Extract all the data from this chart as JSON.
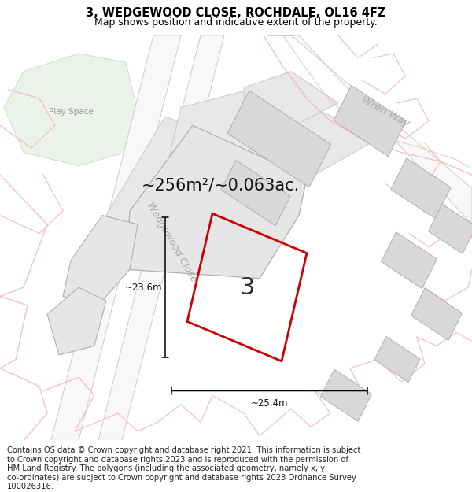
{
  "title_line1": "3, WEDGEWOOD CLOSE, ROCHDALE, OL16 4FZ",
  "title_line2": "Map shows position and indicative extent of the property.",
  "area_label": "~256m²/~0.063ac.",
  "plot_number": "3",
  "dim_width": "~25.4m",
  "dim_height": "~23.6m",
  "street_label_1": "Wedgewood Close",
  "street_label_2": "Wren Way",
  "play_space_label": "Play Space",
  "map_bg": "#ffffff",
  "plot_edge_color": "#cc0000",
  "building_fill": "#d8d8d8",
  "building_edge": "#b0b0b0",
  "street_color": "#f0b8b8",
  "road_fill": "#f5f5f5",
  "road_edge": "#cccccc",
  "green_area_color": "#eaf2ea",
  "green_area_edge": "#c8d8c8",
  "title_fontsize": 10.5,
  "subtitle_fontsize": 9.0,
  "footer_fontsize": 7.2,
  "dim_fontsize": 8.5,
  "area_fontsize": 15,
  "plot_num_fontsize": 22,
  "street_fontsize": 9,
  "play_fontsize": 7.5,
  "footer_lines": [
    "Contains OS data © Crown copyright and database right 2021. This information is subject",
    "to Crown copyright and database rights 2023 and is reproduced with the permission of",
    "HM Land Registry. The polygons (including the associated geometry, namely x, y",
    "co-ordinates) are subject to Crown copyright and database rights 2023 Ordnance Survey",
    "100026316."
  ]
}
